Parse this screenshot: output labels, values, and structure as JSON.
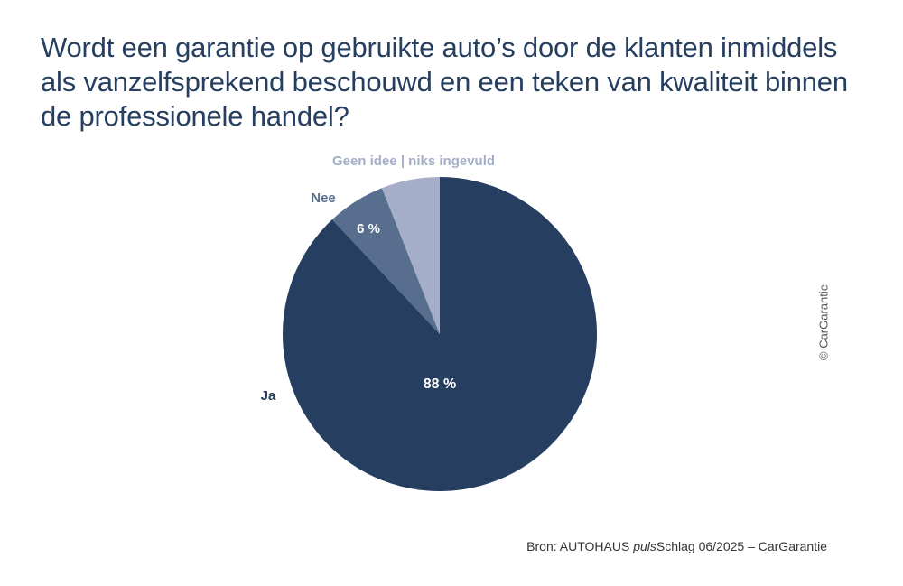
{
  "title_lines": [
    "Wordt een garantie op gebruikte auto’s door de klanten inmiddels",
    "als vanzelfsprekend beschouwd en een teken van kwaliteit binnen",
    "de professionele handel?"
  ],
  "copyright": "© CarGarantie",
  "source": {
    "prefix": "Bron: AUTOHAUS ",
    "italic": "puls",
    "suffix": "Schlag 06/2025 – CarGarantie"
  },
  "chart_data": {
    "type": "pie",
    "title": "Wordt een garantie op gebruikte auto’s door de klanten inmiddels als vanzelfsprekend beschouwd en een teken van kwaliteit binnen de professionele handel?",
    "start": "12 o'clock, clockwise",
    "legend": "none",
    "slices": [
      {
        "label": "Ja",
        "value": 88,
        "value_label": "88 %",
        "color": "#263e5f"
      },
      {
        "label": "Nee",
        "value": 6,
        "value_label": "6 %",
        "color": "#586e8f"
      },
      {
        "label": "Geen idee | niks ingevuld",
        "value": 6,
        "value_label": "",
        "color": "#a5aec8"
      }
    ]
  }
}
